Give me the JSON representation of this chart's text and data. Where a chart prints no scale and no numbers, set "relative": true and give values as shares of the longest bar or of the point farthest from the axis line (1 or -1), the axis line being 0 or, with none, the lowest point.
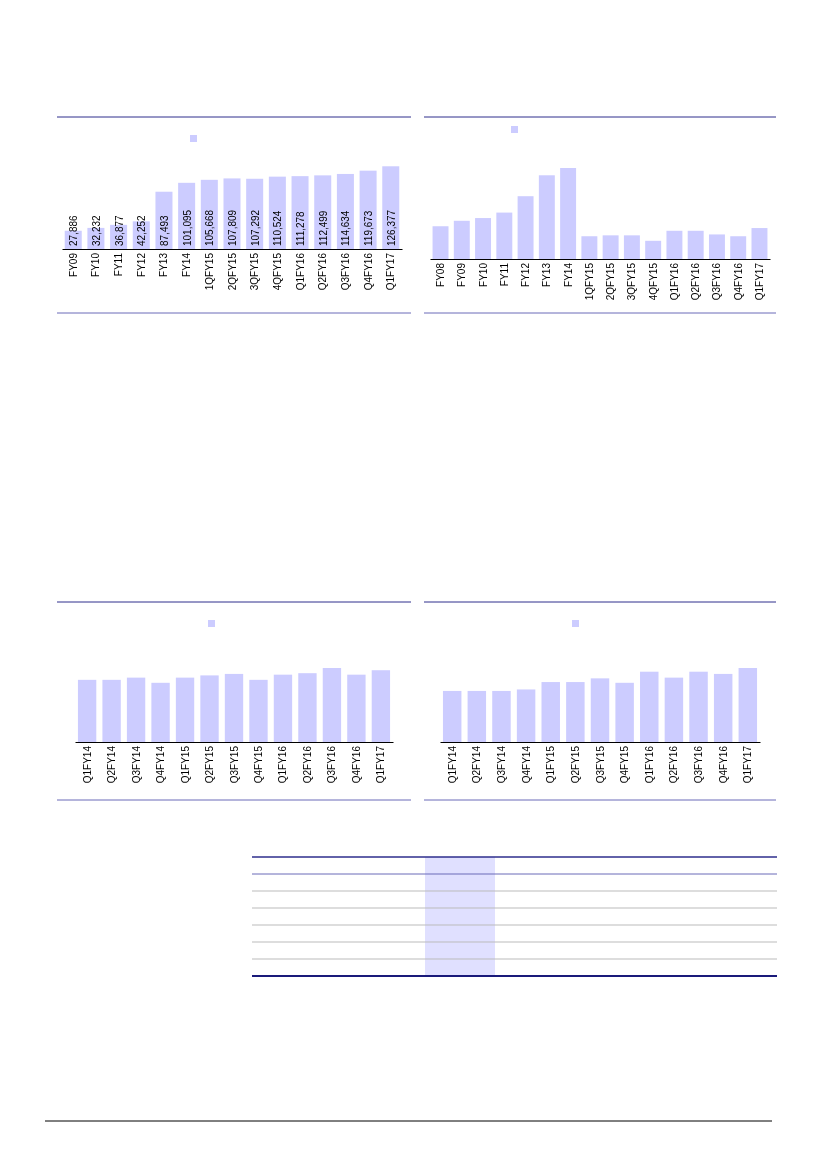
{
  "chart_data": [
    {
      "type": "bar",
      "categories": [
        "FY09",
        "FY10",
        "FY11",
        "FY12",
        "FY13",
        "FY14",
        "1QFY15",
        "2QFY15",
        "3QFY15",
        "4QFY15",
        "Q1FY16",
        "Q2FY16",
        "Q3FY16",
        "Q4FY16",
        "Q1FY17"
      ],
      "color": "#ccccff",
      "values": [
        27886,
        32232,
        36877,
        42252,
        87493,
        101095,
        105668,
        107809,
        107292,
        110524,
        111278,
        112499,
        114634,
        119673,
        126377
      ],
      "value_labels": [
        "27,886",
        "32,232",
        "36,877",
        "42,252",
        "87,493",
        "101,095",
        "105,668",
        "107,809",
        "107,292",
        "110,524",
        "111,278",
        "112,499",
        "114,634",
        "119,673",
        "126,377"
      ]
    },
    {
      "type": "bar",
      "categories": [
        "FY08",
        "FY09",
        "FY10",
        "FY11",
        "FY12",
        "FY13",
        "FY14",
        "1QFY15",
        "2QFY15",
        "3QFY15",
        "4QFY15",
        "Q1FY16",
        "Q2FY16",
        "Q3FY16",
        "Q4FY16",
        "Q1FY17"
      ],
      "color": "#ccccff",
      "values": [
        0.36,
        0.42,
        0.45,
        0.51,
        0.69,
        0.92,
        1,
        0.25,
        0.26,
        0.26,
        0.2,
        0.31,
        0.31,
        0.27,
        0.25,
        0.34
      ],
      "relative": true
    },
    {
      "type": "bar",
      "categories": [
        "Q1FY14",
        "Q2FY14",
        "Q3FY14",
        "Q4FY14",
        "Q1FY15",
        "Q2FY15",
        "Q3FY15",
        "Q4FY15",
        "Q1FY16",
        "Q2FY16",
        "Q3FY16",
        "Q4FY16",
        "Q1FY17"
      ],
      "color": "#ccccff",
      "values": [
        0.84,
        0.84,
        0.87,
        0.8,
        0.87,
        0.9,
        0.92,
        0.84,
        0.91,
        0.93,
        1,
        0.91,
        0.97
      ],
      "relative": true
    },
    {
      "type": "bar",
      "categories": [
        "Q1FY14",
        "Q2FY14",
        "Q3FY14",
        "Q4FY14",
        "Q1FY15",
        "Q2FY15",
        "Q3FY15",
        "Q4FY15",
        "Q1FY16",
        "Q2FY16",
        "Q3FY16",
        "Q4FY16",
        "Q1FY17"
      ],
      "color": "#ccccff",
      "values": [
        0.69,
        0.69,
        0.69,
        0.71,
        0.81,
        0.81,
        0.86,
        0.8,
        0.95,
        0.87,
        0.95,
        0.92,
        1
      ],
      "relative": true
    }
  ]
}
